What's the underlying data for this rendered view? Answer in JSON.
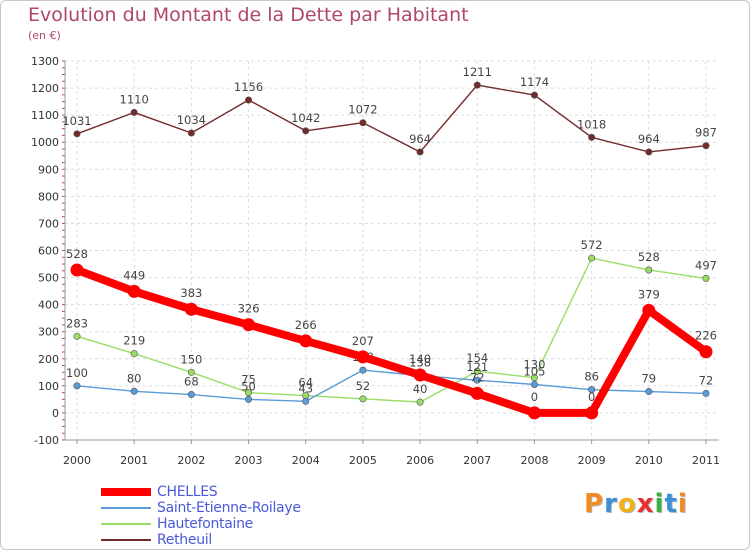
{
  "chart_data": {
    "type": "line",
    "title": "Evolution du Montant de la Dette par Habitant",
    "unit": "(en €)",
    "xlabel": "",
    "ylabel": "",
    "categories": [
      "2000",
      "2001",
      "2002",
      "2003",
      "2004",
      "2005",
      "2006",
      "2007",
      "2008",
      "2009",
      "2010",
      "2011"
    ],
    "ylim": [
      -100,
      1300
    ],
    "yticks": [
      -100,
      0,
      100,
      200,
      300,
      400,
      500,
      600,
      700,
      800,
      900,
      1000,
      1100,
      1200,
      1300
    ],
    "grid": true,
    "legend_position": "bottom-left",
    "series": [
      {
        "name": "Retheuil",
        "color": "#722a2a",
        "values": [
          1031,
          1110,
          1034,
          1156,
          1042,
          1072,
          964,
          1211,
          1174,
          1018,
          964,
          987
        ]
      },
      {
        "name": "Hautefontaine",
        "color": "#99dd66",
        "values": [
          283,
          219,
          150,
          75,
          64,
          52,
          40,
          154,
          130,
          572,
          528,
          497
        ]
      },
      {
        "name": "Saint-Etienne-Roilaye",
        "color": "#5a9bd8",
        "values": [
          100,
          80,
          68,
          50,
          43,
          158,
          138,
          121,
          105,
          86,
          79,
          72
        ]
      },
      {
        "name": "CHELLES",
        "color": "#ff0000",
        "values": [
          528,
          449,
          383,
          326,
          266,
          207,
          140,
          72,
          0,
          0,
          379,
          226
        ]
      }
    ]
  },
  "legend": [
    {
      "name": "CHELLES",
      "color": "#ff0000"
    },
    {
      "name": "Saint-Etienne-Roilaye",
      "color": "#5a9bd8"
    },
    {
      "name": "Hautefontaine",
      "color": "#99dd66"
    },
    {
      "name": "Retheuil",
      "color": "#722a2a"
    }
  ],
  "logo": {
    "letters": [
      "P",
      "r",
      "o",
      "x",
      "i",
      "t",
      "i"
    ],
    "colors": [
      "#f08a24",
      "#3a8fd6",
      "#f0b020",
      "#e83030",
      "#3ab040",
      "#3a8fd6",
      "#f08a24"
    ]
  }
}
